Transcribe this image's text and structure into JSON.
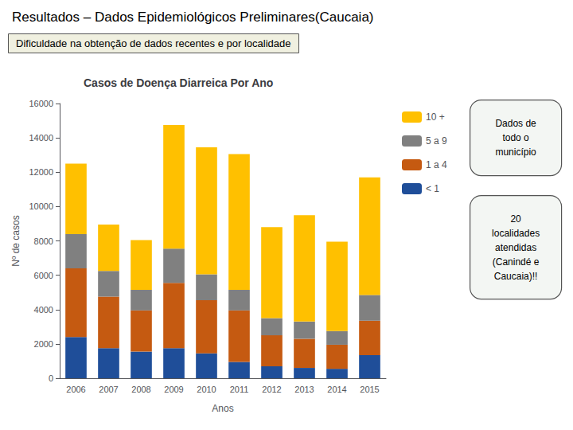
{
  "chart_data": {
    "type": "bar",
    "stacked": true,
    "title": "Casos de Doença Diarreica Por Ano",
    "subtitle": "Dificuldade na obtenção de dados recentes e por localidade",
    "annotations": [
      "Resultados – Dados Epidemiológicos Preliminares(Caucaia)",
      "Dados de\ntodo o\nmunicípio",
      "20\nlocalidades\natendidas\n(Canindé e\nCaucaia)!!"
    ],
    "xlabel": "Anos",
    "ylabel": "Nº de casos",
    "categories": [
      "2006",
      "2007",
      "2008",
      "2009",
      "2010",
      "2011",
      "2012",
      "2013",
      "2014",
      "2015"
    ],
    "series": [
      {
        "name": "< 1",
        "color": "#1f4e99",
        "values": [
          2400,
          1750,
          1550,
          1750,
          1450,
          950,
          700,
          600,
          550,
          1350
        ]
      },
      {
        "name": "1 a 4",
        "color": "#c55a11",
        "values": [
          4000,
          3000,
          2400,
          3800,
          3100,
          3000,
          1800,
          1700,
          1400,
          2000
        ]
      },
      {
        "name": "5 a 9",
        "color": "#808080",
        "values": [
          2000,
          1500,
          1200,
          2000,
          1500,
          1200,
          1000,
          1000,
          800,
          1500
        ]
      },
      {
        "name": "10 +",
        "color": "#ffc000",
        "values": [
          4100,
          2700,
          2900,
          7200,
          7400,
          7900,
          5300,
          6200,
          5200,
          6850
        ]
      }
    ],
    "ylim": [
      0,
      16000
    ],
    "yticks": [
      0,
      2000,
      4000,
      6000,
      8000,
      10000,
      12000,
      14000,
      16000
    ],
    "grid": false,
    "legend": "right"
  }
}
